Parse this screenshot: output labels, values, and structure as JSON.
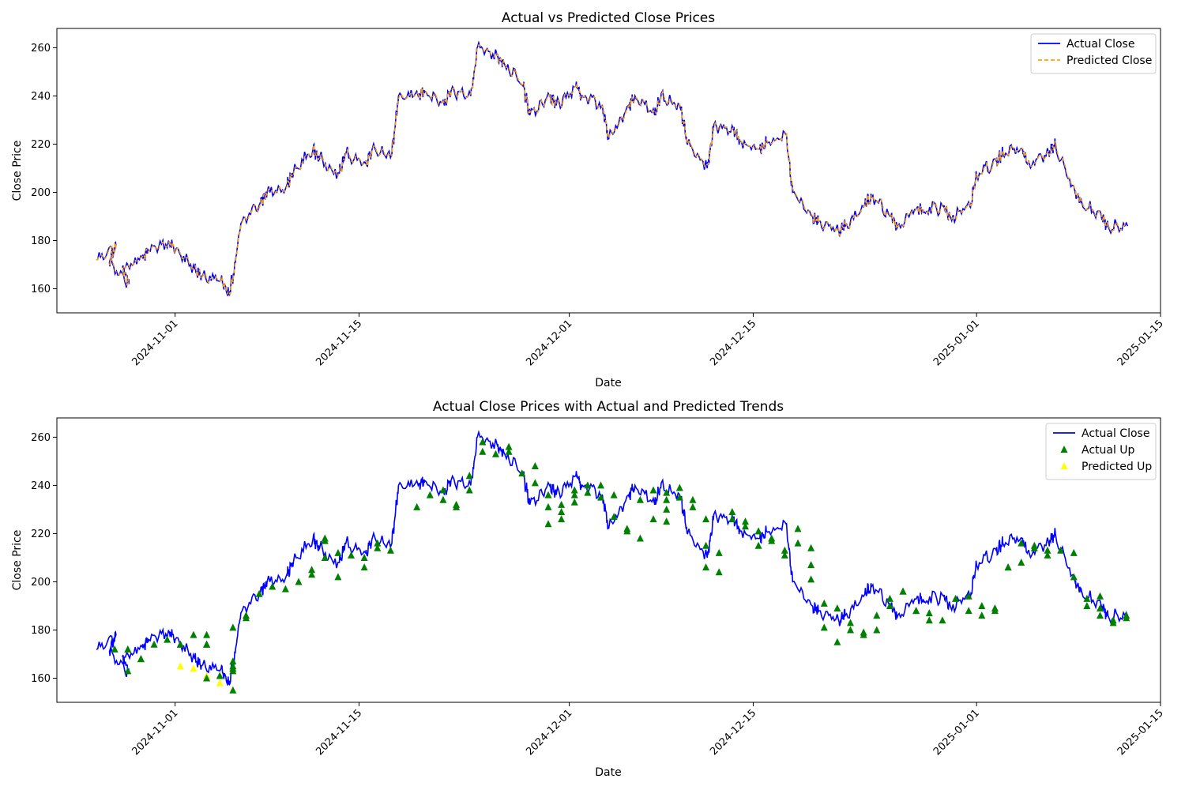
{
  "figure": {
    "colors": {
      "actual": "#0000ff",
      "predicted": "#ffa500",
      "actual_up": "#008000",
      "predicted_up": "#ffff00"
    }
  },
  "chart_data": [
    {
      "type": "line",
      "title": "Actual vs Predicted Close Prices",
      "xlabel": "Date",
      "ylabel": "Close Price",
      "x_type": "date",
      "xlim": [
        "2024-10-23",
        "2025-01-15"
      ],
      "ylim": [
        150,
        268
      ],
      "xticks": [
        "2024-11-01",
        "2024-11-15",
        "2024-12-01",
        "2024-12-15",
        "2025-01-01",
        "2025-01-15"
      ],
      "yticks": [
        160,
        180,
        200,
        220,
        240,
        260
      ],
      "grid": false,
      "legend": {
        "placement": "upper right",
        "entries": [
          {
            "label": "Actual Close",
            "style": "solid line",
            "color": "#0000ff"
          },
          {
            "label": "Predicted Close",
            "style": "dashed line",
            "color": "#ffa500"
          }
        ]
      },
      "series_ref": "price_series",
      "series": [
        {
          "name": "Actual Close",
          "style": "solid",
          "color": "#0000ff"
        },
        {
          "name": "Predicted Close",
          "style": "dashed",
          "color": "#ffa500"
        }
      ]
    },
    {
      "type": "line",
      "title": "Actual Close Prices with Actual and Predicted Trends",
      "xlabel": "Date",
      "ylabel": "Close Price",
      "x_type": "date",
      "xlim": [
        "2024-10-23",
        "2025-01-15"
      ],
      "ylim": [
        150,
        268
      ],
      "xticks": [
        "2024-11-01",
        "2024-11-15",
        "2024-12-01",
        "2024-12-15",
        "2025-01-01",
        "2025-01-15"
      ],
      "yticks": [
        160,
        180,
        200,
        220,
        240,
        260
      ],
      "grid": false,
      "legend": {
        "placement": "upper right",
        "entries": [
          {
            "label": "Actual Close",
            "style": "solid line",
            "color": "#0000ff"
          },
          {
            "label": "Actual Up",
            "style": "triangle marker",
            "color": "#008000"
          },
          {
            "label": "Predicted Up",
            "style": "triangle marker",
            "color": "#ffff00"
          }
        ]
      },
      "series_ref": "price_series",
      "series": [
        {
          "name": "Actual Close",
          "style": "solid",
          "color": "#0000ff"
        }
      ],
      "markers": [
        {
          "name": "Predicted Up",
          "color": "#ffff00",
          "points": [
            [
              "2024-11-01",
              165
            ],
            [
              "2024-11-02",
              164
            ],
            [
              "2024-11-03",
              161
            ],
            [
              "2024-11-03",
              160
            ],
            [
              "2024-11-04",
              158
            ]
          ]
        },
        {
          "name": "Actual Up",
          "color": "#008000",
          "points": [
            [
              "2024-10-27",
              172
            ],
            [
              "2024-10-28",
              172
            ],
            [
              "2024-10-28",
              163
            ],
            [
              "2024-10-29",
              168
            ],
            [
              "2024-10-29",
              168
            ],
            [
              "2024-10-30",
              174
            ],
            [
              "2024-10-31",
              176
            ],
            [
              "2024-11-01",
              174
            ],
            [
              "2024-11-01",
              174
            ],
            [
              "2024-11-02",
              178
            ],
            [
              "2024-11-03",
              178
            ],
            [
              "2024-11-03",
              174
            ],
            [
              "2024-11-03",
              174
            ],
            [
              "2024-11-05",
              167
            ],
            [
              "2024-11-05",
              165
            ],
            [
              "2024-11-05",
              163
            ],
            [
              "2024-11-03",
              160
            ],
            [
              "2024-11-04",
              161
            ],
            [
              "2024-11-05",
              155
            ],
            [
              "2024-11-05",
              164
            ],
            [
              "2024-11-05",
              181
            ],
            [
              "2024-11-06",
              185
            ],
            [
              "2024-11-06",
              186
            ],
            [
              "2024-11-07",
              195
            ],
            [
              "2024-11-08",
              198
            ],
            [
              "2024-11-09",
              197
            ],
            [
              "2024-11-10",
              200
            ],
            [
              "2024-11-11",
              203
            ],
            [
              "2024-11-11",
              205
            ],
            [
              "2024-11-12",
              217
            ],
            [
              "2024-11-12",
              218
            ],
            [
              "2024-11-12",
              210
            ],
            [
              "2024-11-13",
              202
            ],
            [
              "2024-11-13",
              212
            ],
            [
              "2024-11-14",
              211
            ],
            [
              "2024-11-15",
              206
            ],
            [
              "2024-11-15",
              210
            ],
            [
              "2024-11-16",
              216
            ],
            [
              "2024-11-16",
              214
            ],
            [
              "2024-11-17",
              213
            ],
            [
              "2024-11-19",
              231
            ],
            [
              "2024-11-20",
              236
            ],
            [
              "2024-11-21",
              238
            ],
            [
              "2024-11-21",
              234
            ],
            [
              "2024-11-22",
              232
            ],
            [
              "2024-11-22",
              231
            ],
            [
              "2024-11-23",
              238
            ],
            [
              "2024-11-23",
              244
            ],
            [
              "2024-11-24",
              254
            ],
            [
              "2024-11-24",
              258
            ],
            [
              "2024-11-25",
              253
            ],
            [
              "2024-11-26",
              254
            ],
            [
              "2024-11-26",
              256
            ],
            [
              "2024-11-27",
              245
            ],
            [
              "2024-11-28",
              248
            ],
            [
              "2024-11-28",
              241
            ],
            [
              "2024-11-29",
              236
            ],
            [
              "2024-11-29",
              231
            ],
            [
              "2024-11-29",
              224
            ],
            [
              "2024-11-30",
              226
            ],
            [
              "2024-11-30",
              229
            ],
            [
              "2024-11-30",
              232
            ],
            [
              "2024-12-01",
              238
            ],
            [
              "2024-12-01",
              236
            ],
            [
              "2024-12-01",
              233
            ],
            [
              "2024-12-02",
              237
            ],
            [
              "2024-12-02",
              240
            ],
            [
              "2024-12-03",
              240
            ],
            [
              "2024-12-03",
              235
            ],
            [
              "2024-12-04",
              236
            ],
            [
              "2024-12-04",
              227
            ],
            [
              "2024-12-05",
              222
            ],
            [
              "2024-12-05",
              221
            ],
            [
              "2024-12-06",
              218
            ],
            [
              "2024-12-06",
              234
            ],
            [
              "2024-12-07",
              238
            ],
            [
              "2024-12-07",
              226
            ],
            [
              "2024-12-08",
              225
            ],
            [
              "2024-12-08",
              234
            ],
            [
              "2024-12-08",
              230
            ],
            [
              "2024-12-08",
              237
            ],
            [
              "2024-12-09",
              235
            ],
            [
              "2024-12-09",
              239
            ],
            [
              "2024-12-10",
              234
            ],
            [
              "2024-12-10",
              231
            ],
            [
              "2024-12-11",
              226
            ],
            [
              "2024-12-11",
              215
            ],
            [
              "2024-12-11",
              206
            ],
            [
              "2024-12-12",
              204
            ],
            [
              "2024-12-12",
              212
            ],
            [
              "2024-12-13",
              226
            ],
            [
              "2024-12-13",
              229
            ],
            [
              "2024-12-14",
              225
            ],
            [
              "2024-12-14",
              223
            ],
            [
              "2024-12-15",
              221
            ],
            [
              "2024-12-15",
              215
            ],
            [
              "2024-12-16",
              218
            ],
            [
              "2024-12-16",
              217
            ],
            [
              "2024-12-17",
              213
            ],
            [
              "2024-12-17",
              211
            ],
            [
              "2024-12-18",
              222
            ],
            [
              "2024-12-18",
              216
            ],
            [
              "2024-12-19",
              214
            ],
            [
              "2024-12-19",
              207
            ],
            [
              "2024-12-19",
              201
            ],
            [
              "2024-12-20",
              191
            ],
            [
              "2024-12-20",
              181
            ],
            [
              "2024-12-21",
              175
            ],
            [
              "2024-12-21",
              189
            ],
            [
              "2024-12-22",
              183
            ],
            [
              "2024-12-22",
              180
            ],
            [
              "2024-12-23",
              179
            ],
            [
              "2024-12-23",
              178
            ],
            [
              "2024-12-24",
              180
            ],
            [
              "2024-12-24",
              186
            ],
            [
              "2024-12-25",
              190
            ],
            [
              "2024-12-25",
              193
            ],
            [
              "2024-12-26",
              196
            ],
            [
              "2024-12-26",
              196
            ],
            [
              "2024-12-27",
              188
            ],
            [
              "2024-12-27",
              188
            ],
            [
              "2024-12-28",
              187
            ],
            [
              "2024-12-28",
              184
            ],
            [
              "2024-12-29",
              184
            ],
            [
              "2024-12-30",
              193
            ],
            [
              "2024-12-31",
              194
            ],
            [
              "2024-12-31",
              188
            ],
            [
              "2025-01-01",
              186
            ],
            [
              "2025-01-01",
              190
            ],
            [
              "2025-01-02",
              188
            ],
            [
              "2025-01-02",
              189
            ],
            [
              "2025-01-03",
              206
            ],
            [
              "2025-01-03",
              206
            ],
            [
              "2025-01-04",
              208
            ],
            [
              "2025-01-04",
              216
            ],
            [
              "2025-01-05",
              214
            ],
            [
              "2025-01-05",
              215
            ],
            [
              "2025-01-06",
              213
            ],
            [
              "2025-01-06",
              211
            ],
            [
              "2025-01-07",
              213
            ],
            [
              "2025-01-08",
              212
            ],
            [
              "2025-01-08",
              202
            ],
            [
              "2025-01-09",
              193
            ],
            [
              "2025-01-09",
              190
            ],
            [
              "2025-01-10",
              194
            ],
            [
              "2025-01-10",
              189
            ],
            [
              "2025-01-10",
              186
            ],
            [
              "2025-01-11",
              183
            ],
            [
              "2025-01-11",
              184
            ],
            [
              "2025-01-12",
              185
            ],
            [
              "2025-01-12",
              186
            ]
          ]
        }
      ]
    }
  ],
  "price_series": {
    "description_free": true,
    "dates": [
      "2024-10-26",
      "2024-10-27",
      "2024-10-27",
      "2024-10-28",
      "2024-10-28",
      "2024-10-29",
      "2024-10-30",
      "2024-10-31",
      "2024-11-01",
      "2024-11-02",
      "2024-11-03",
      "2024-11-04",
      "2024-11-05",
      "2024-11-05",
      "2024-11-06",
      "2024-11-07",
      "2024-11-08",
      "2024-11-09",
      "2024-11-10",
      "2024-11-11",
      "2024-11-12",
      "2024-11-13",
      "2024-11-14",
      "2024-11-15",
      "2024-11-16",
      "2024-11-17",
      "2024-11-18",
      "2024-11-19",
      "2024-11-20",
      "2024-11-21",
      "2024-11-22",
      "2024-11-23",
      "2024-11-24",
      "2024-11-25",
      "2024-11-26",
      "2024-11-27",
      "2024-11-28",
      "2024-11-29",
      "2024-11-30",
      "2024-12-01",
      "2024-12-02",
      "2024-12-03",
      "2024-12-04",
      "2024-12-05",
      "2024-12-06",
      "2024-12-07",
      "2024-12-08",
      "2024-12-09",
      "2024-12-10",
      "2024-12-11",
      "2024-12-12",
      "2024-12-13",
      "2024-12-14",
      "2024-12-15",
      "2024-12-16",
      "2024-12-17",
      "2024-12-18",
      "2024-12-19",
      "2024-12-20",
      "2024-12-21",
      "2024-12-22",
      "2024-12-23",
      "2024-12-24",
      "2024-12-25",
      "2024-12-26",
      "2024-12-27",
      "2024-12-28",
      "2024-12-29",
      "2024-12-30",
      "2024-12-31",
      "2025-01-01",
      "2025-01-02",
      "2025-01-03",
      "2025-01-04",
      "2025-01-05",
      "2025-01-06",
      "2025-01-07",
      "2025-01-08",
      "2025-01-09",
      "2025-01-10",
      "2025-01-11",
      "2025-01-12"
    ],
    "close": [
      172,
      178,
      171,
      162,
      169,
      173,
      176,
      180,
      176,
      168,
      165,
      164,
      157,
      167,
      187,
      196,
      200,
      203,
      208,
      218,
      214,
      208,
      216,
      212,
      218,
      216,
      240,
      240,
      242,
      236,
      242,
      240,
      260,
      257,
      254,
      244,
      232,
      240,
      236,
      244,
      240,
      236,
      222,
      236,
      240,
      232,
      241,
      234,
      220,
      210,
      228,
      226,
      221,
      218,
      221,
      224,
      200,
      190,
      188,
      184,
      186,
      195,
      198,
      190,
      186,
      194,
      192,
      194,
      190,
      194,
      207,
      213,
      216,
      218,
      212,
      216,
      220,
      200,
      196,
      190,
      186,
      186
    ]
  }
}
